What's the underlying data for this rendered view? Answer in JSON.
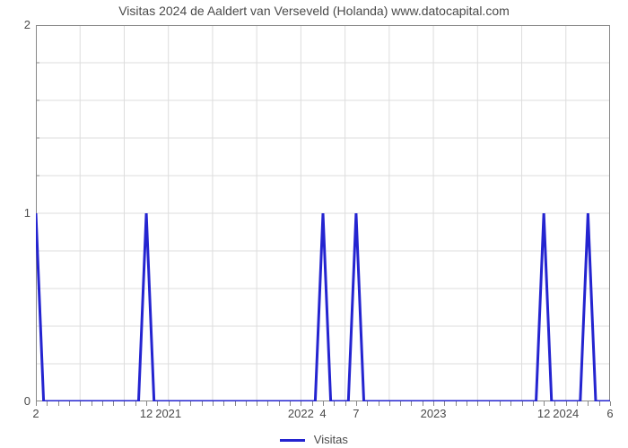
{
  "chart": {
    "type": "line",
    "title": "Visitas 2024 de Aaldert van Verseveld (Holanda) www.datocapital.com",
    "title_fontsize": 14,
    "title_color": "#4a4a4a",
    "background_color": "#ffffff",
    "plot_border_color": "#888888",
    "grid_color": "#dddddd",
    "grid_width": 1,
    "line_color": "#2424d0",
    "line_width": 3,
    "x": {
      "domain_min": 0,
      "domain_max": 52,
      "major_ticks": [
        {
          "pos": 0,
          "label": "2"
        },
        {
          "pos": 10,
          "label": "12"
        },
        {
          "pos": 12,
          "label": "2021"
        },
        {
          "pos": 24,
          "label": "2022"
        },
        {
          "pos": 26,
          "label": "4"
        },
        {
          "pos": 29,
          "label": "7"
        },
        {
          "pos": 36,
          "label": "2023"
        },
        {
          "pos": 46,
          "label": "12"
        },
        {
          "pos": 48,
          "label": "2024"
        },
        {
          "pos": 52,
          "label": "6"
        }
      ],
      "minor_tick_every": 1,
      "minor_until": 6,
      "label_fontsize": 13,
      "label_color": "#4a4a4a"
    },
    "y": {
      "lim": [
        0,
        2
      ],
      "tick_step": 1,
      "minor_ticks": 4,
      "gridlines_at": [
        0,
        0.2,
        0.4,
        0.6,
        0.8,
        1.0,
        1.2,
        1.4,
        1.6,
        1.8,
        2.0
      ],
      "label_fontsize": 13,
      "label_color": "#4a4a4a"
    },
    "vgrid_every": 4,
    "series": [
      {
        "name": "Visitas",
        "color": "#2424d0",
        "points": [
          [
            0,
            1
          ],
          [
            0.7,
            0
          ],
          [
            9.3,
            0
          ],
          [
            10,
            1
          ],
          [
            10.7,
            0
          ],
          [
            25.3,
            0
          ],
          [
            26,
            1
          ],
          [
            26.7,
            0
          ],
          [
            28.3,
            0
          ],
          [
            29,
            1
          ],
          [
            29.7,
            0
          ],
          [
            45.3,
            0
          ],
          [
            46,
            1
          ],
          [
            46.7,
            0
          ],
          [
            49.3,
            0
          ],
          [
            50,
            1
          ],
          [
            50.7,
            0
          ],
          [
            52,
            0
          ]
        ]
      }
    ],
    "legend": {
      "label": "Visitas",
      "swatch_color": "#2424d0"
    }
  }
}
